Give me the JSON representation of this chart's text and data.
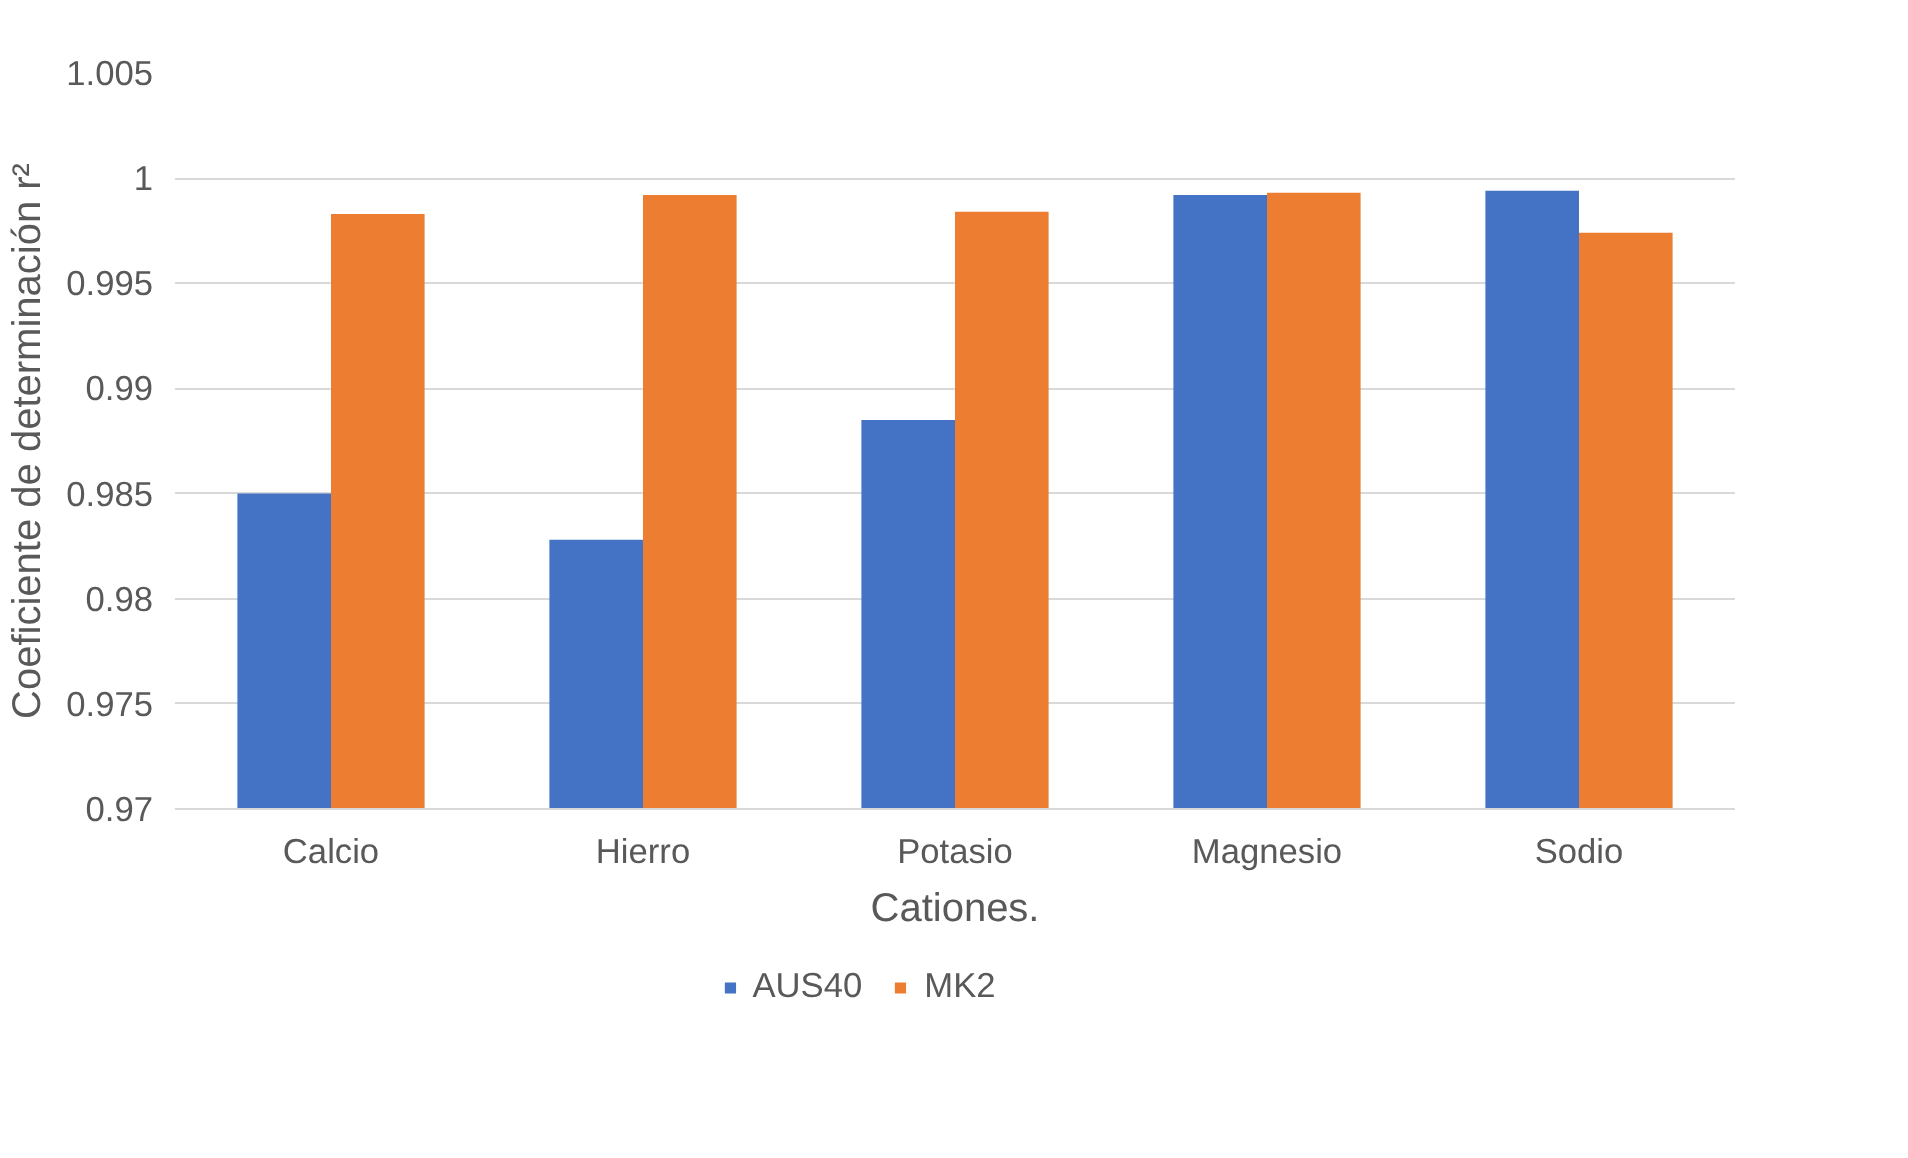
{
  "chart_data": {
    "type": "bar",
    "xlabel": "Cationes.",
    "ylabel": "Coeficiente de determinación r²",
    "categories": [
      "Calcio",
      "Hierro",
      "Potasio",
      "Magnesio",
      "Sodio"
    ],
    "series": [
      {
        "name": "AUS40",
        "color": "#4472c4",
        "values": [
          0.985,
          0.9828,
          0.9885,
          0.9992,
          0.9994
        ]
      },
      {
        "name": "MK2",
        "color": "#ed7d31",
        "values": [
          0.9983,
          0.9992,
          0.9984,
          0.9993,
          0.9974
        ]
      }
    ],
    "ylim": [
      0.97,
      1.005
    ],
    "yticks": [
      {
        "value": 0.97,
        "label": "0.97"
      },
      {
        "value": 0.975,
        "label": "0.975"
      },
      {
        "value": 0.98,
        "label": "0.98"
      },
      {
        "value": 0.985,
        "label": "0.985"
      },
      {
        "value": 0.99,
        "label": "0.99"
      },
      {
        "value": 0.995,
        "label": "0.995"
      },
      {
        "value": 1,
        "label": "1"
      },
      {
        "value": 1.005,
        "label": "1.005"
      }
    ],
    "grid": "y",
    "legend": "bottom"
  }
}
